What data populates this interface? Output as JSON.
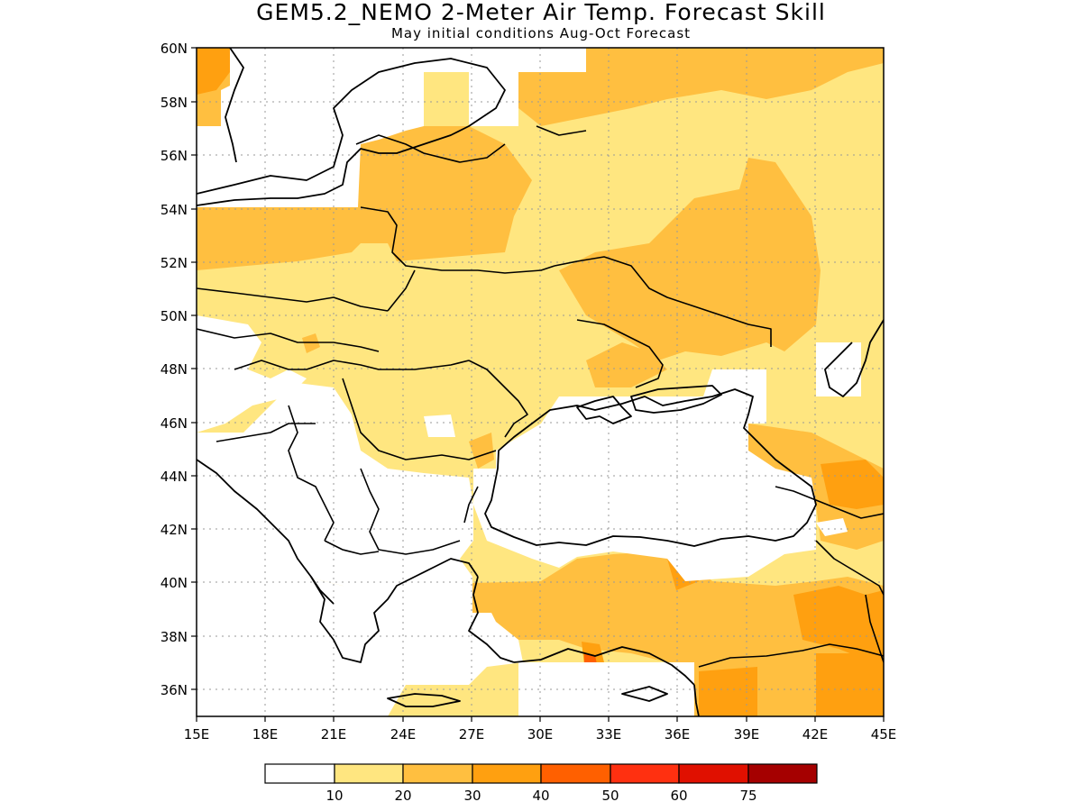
{
  "title": "GEM5.2_NEMO 2-Meter Air Temp. Forecast Skill",
  "subtitle": "May initial conditions  Aug-Oct Forecast",
  "map": {
    "lon_range": [
      15,
      45
    ],
    "lat_range": [
      35,
      60
    ],
    "lat_ticks": [
      "60N",
      "58N",
      "56N",
      "54N",
      "52N",
      "50N",
      "48N",
      "46N",
      "44N",
      "42N",
      "40N",
      "38N",
      "36N"
    ],
    "lon_ticks": [
      "15E",
      "18E",
      "21E",
      "24E",
      "27E",
      "30E",
      "33E",
      "36E",
      "39E",
      "42E",
      "45E"
    ],
    "grid": true
  },
  "colorbar": {
    "labels": [
      "10",
      "20",
      "30",
      "40",
      "50",
      "60",
      "75"
    ],
    "colors": [
      "#ffffff",
      "#ffe680",
      "#ffbf40",
      "#ffa010",
      "#ff6000",
      "#ff3010",
      "#e01000",
      "#a50000"
    ]
  }
}
